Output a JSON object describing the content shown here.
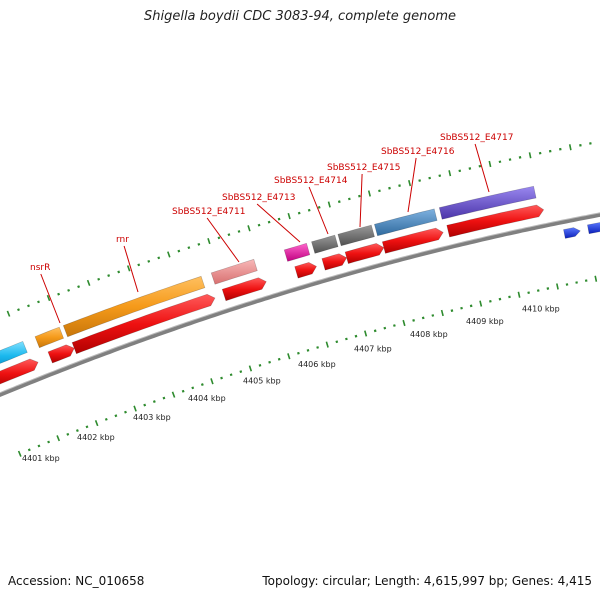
{
  "title": "Shigella boydii CDC 3083-94, complete genome",
  "footer": {
    "accession": "Accession: NC_010658",
    "topology": "Topology: circular; Length: 4,615,997 bp; Genes: 4,415"
  },
  "scale": {
    "ticks": [
      {
        "label": "4401 kbp"
      },
      {
        "label": "4402 kbp"
      },
      {
        "label": "4403 kbp"
      },
      {
        "label": "4404 kbp"
      },
      {
        "label": "4405 kbp"
      },
      {
        "label": "4406 kbp"
      },
      {
        "label": "4407 kbp"
      },
      {
        "label": "4408 kbp"
      },
      {
        "label": "4409 kbp"
      },
      {
        "label": "4410 kbp"
      }
    ]
  },
  "gene_labels": [
    {
      "text": "nsrR",
      "color": "#cc0000"
    },
    {
      "text": "rnr",
      "color": "#cc0000"
    },
    {
      "text": "SbBS512_E4711",
      "color": "#cc0000"
    },
    {
      "text": "SbBS512_E4713",
      "color": "#cc0000"
    },
    {
      "text": "SbBS512_E4714",
      "color": "#cc0000"
    },
    {
      "text": "SbBS512_E4715",
      "color": "#cc0000"
    },
    {
      "text": "SbBS512_E4716",
      "color": "#cc0000"
    },
    {
      "text": "SbBS512_E4717",
      "color": "#cc0000"
    }
  ],
  "colors": {
    "backbone": "#808080",
    "cds": "#ee1111",
    "tick_green": "#2e8b2e",
    "label_red": "#cc0000",
    "feature_cyan": "#1ab8ee",
    "feature_orange": "#f59a1a",
    "feature_pink": "#e88a8a",
    "feature_magenta": "#ee1199",
    "feature_gray": "#666666",
    "feature_steelblue": "#4a82b8",
    "feature_purple": "#6b52c8",
    "feature_blue": "#1833ee"
  }
}
